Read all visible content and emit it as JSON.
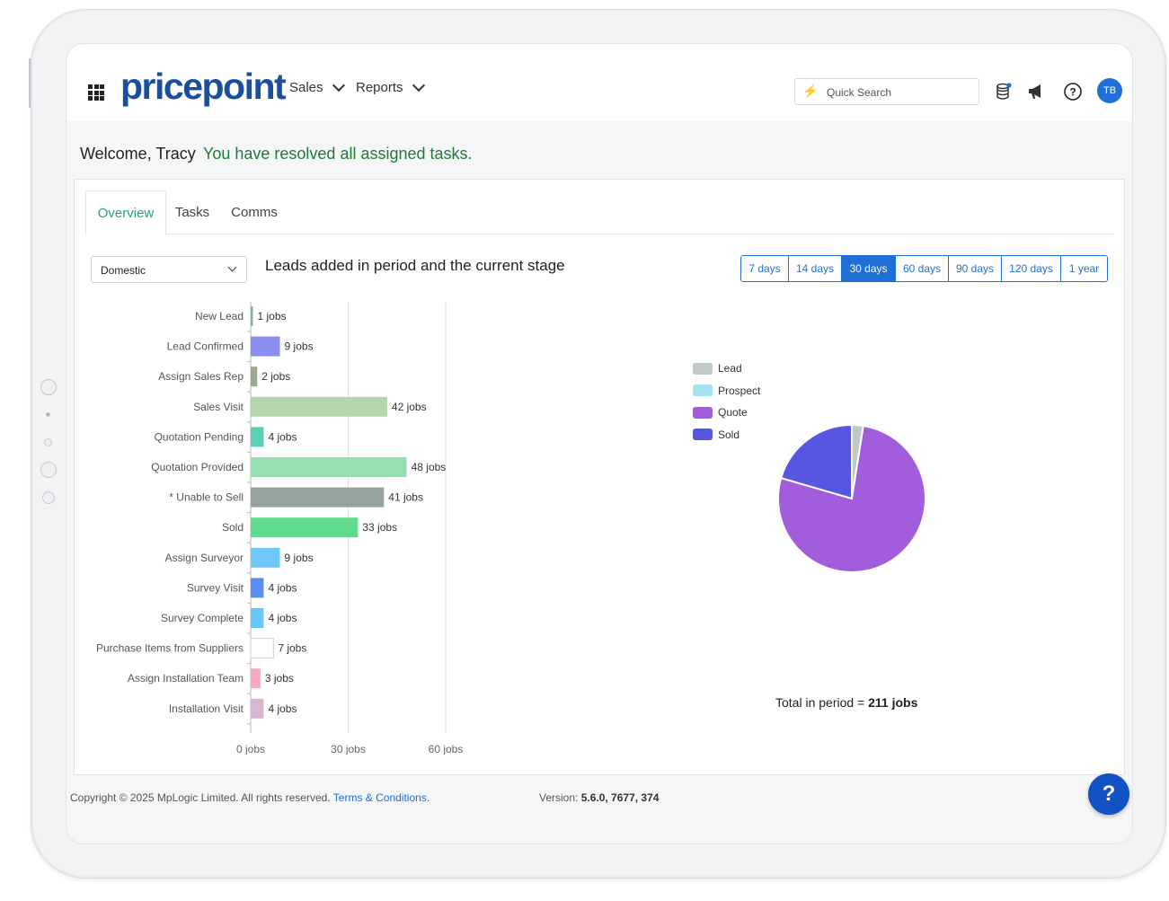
{
  "app": {
    "logo_text": "pricepoint",
    "nav": [
      {
        "label": "Sales"
      },
      {
        "label": "Reports"
      }
    ],
    "search_placeholder": "Quick Search",
    "avatar_initials": "TB"
  },
  "welcome": {
    "greeting": "Welcome, Tracy",
    "status": "You have resolved all assigned tasks."
  },
  "tabs": [
    {
      "label": "Overview",
      "active": true
    },
    {
      "label": "Tasks",
      "active": false
    },
    {
      "label": "Comms",
      "active": false
    }
  ],
  "filter": {
    "selected": "Domestic"
  },
  "periods": [
    {
      "label": "7 days",
      "active": false
    },
    {
      "label": "14 days",
      "active": false
    },
    {
      "label": "30 days",
      "active": true
    },
    {
      "label": "60 days",
      "active": false
    },
    {
      "label": "90 days",
      "active": false
    },
    {
      "label": "120 days",
      "active": false
    },
    {
      "label": "1 year",
      "active": false
    }
  ],
  "chart_data": [
    {
      "type": "bar",
      "orientation": "horizontal",
      "title": "Leads added in period and the current stage",
      "categories": [
        "New Lead",
        "Lead Confirmed",
        "Assign Sales Rep",
        "Sales Visit",
        "Quotation Pending",
        "Quotation Provided",
        "* Unable to Sell",
        "Sold",
        "Assign Surveyor",
        "Survey Visit",
        "Survey Complete",
        "Purchase Items from Suppliers",
        "Assign Installation Team",
        "Installation Visit"
      ],
      "values": [
        1,
        9,
        2,
        42,
        4,
        48,
        41,
        33,
        9,
        4,
        4,
        7,
        3,
        4
      ],
      "value_labels": [
        "1 jobs",
        "9 jobs",
        "2 jobs",
        "42 jobs",
        "4 jobs",
        "48 jobs",
        "41 jobs",
        "33 jobs",
        "9 jobs",
        "4 jobs",
        "4 jobs",
        "7 jobs",
        "3 jobs",
        "4 jobs"
      ],
      "colors": [
        "#7fb5b0",
        "#8a8ef0",
        "#9aaa8c",
        "#b5d6ad",
        "#5ccfb8",
        "#96dfb2",
        "#95a39d",
        "#5cdc8c",
        "#6ec8f8",
        "#5a8df0",
        "#65c8f8",
        "#ffffff",
        "#f8a8c0",
        "#d7b8d3"
      ],
      "xlim": [
        0,
        60
      ],
      "xticks": [
        "0 jobs",
        "30 jobs",
        "60 jobs"
      ],
      "grid": true
    },
    {
      "type": "pie",
      "legend": [
        "Lead",
        "Prospect",
        "Quote",
        "Sold"
      ],
      "colors": [
        "#bfc9c9",
        "#a6e1f0",
        "#a25ddc",
        "#5656e0"
      ],
      "values": [
        2.5,
        0,
        77,
        20.5
      ],
      "legend_position": "top-left"
    }
  ],
  "total": {
    "label": "Total in period =",
    "value": "211 jobs"
  },
  "footer": {
    "copyright": "Copyright © 2025 MpLogic Limited. All rights reserved.",
    "terms": "Terms & Conditions.",
    "version_label": "Version:",
    "version_value": "5.6.0, 7677, 374"
  },
  "help_label": "?"
}
